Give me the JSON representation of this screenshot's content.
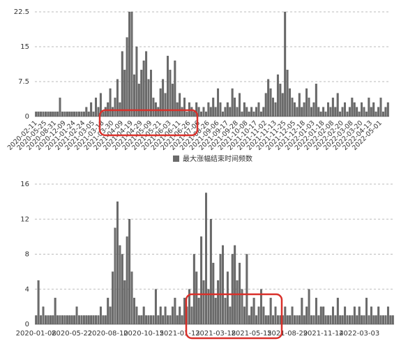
{
  "chart_data": [
    {
      "type": "bar",
      "categories": [
        "2020-02-11",
        null,
        null,
        null,
        "2020-05-25",
        null,
        null,
        null,
        "2020-08-31",
        null,
        null,
        null,
        "2020-12-09",
        null,
        null,
        null,
        "2021-01-24",
        null,
        null,
        null,
        "2021-02-24",
        null,
        null,
        null,
        "2021-03-05",
        null,
        null,
        null,
        "2021-03-18",
        null,
        null,
        null,
        "2021-03-30",
        null,
        null,
        null,
        "2021-04-09",
        null,
        null,
        null,
        "2021-04-19",
        null,
        null,
        null,
        "2021-04-29",
        null,
        null,
        null,
        "2021-05-09",
        null,
        null,
        null,
        "2021-05-21",
        null,
        null,
        null,
        "2021-06-03",
        null,
        null,
        null,
        "2021-06-11",
        null,
        null,
        null,
        "2021-06-26",
        null,
        null,
        null,
        "2021-07-06",
        null,
        null,
        null,
        "2021-08-26",
        null,
        null,
        null,
        "2021-09-06",
        null,
        null,
        null,
        "2021-09-17",
        null,
        null,
        null,
        "2021-09-28",
        null,
        null,
        null,
        "2021-10-08",
        null,
        null,
        null,
        "2021-10-17",
        null,
        null,
        null,
        "2021-11-02",
        null,
        null,
        null,
        "2021-11-13",
        null,
        null,
        null,
        "2021-11-25",
        null,
        null,
        null,
        "2021-12-05",
        null,
        null,
        null,
        "2021-12-18",
        null,
        null,
        null,
        "2022-01-03",
        null,
        null,
        null,
        "2022-01-18",
        null,
        null,
        null,
        "2022-02-08",
        null,
        null,
        null,
        "2022-02-20",
        null,
        null,
        null,
        "2022-03-08",
        null,
        null,
        null,
        "2022-03-20",
        null,
        null,
        null,
        "2022-04-13",
        null,
        null,
        null,
        "2022-05-01",
        null,
        null,
        null
      ],
      "series": [
        {
          "name": "最大涨幅结束时间频数",
          "color": "#6b6b6b",
          "values": [
            1,
            1,
            1,
            1,
            1,
            1,
            1,
            1,
            1,
            1,
            4,
            1,
            1,
            1,
            1,
            1,
            1,
            1,
            1,
            1,
            1,
            2,
            1,
            3,
            1,
            4,
            2,
            5,
            1,
            2,
            3,
            6,
            2,
            4,
            8,
            3,
            14,
            10,
            17,
            22.5,
            22.5,
            9,
            15,
            7,
            10,
            12,
            14,
            8,
            10,
            4,
            3,
            2,
            6,
            8,
            5,
            13,
            10,
            7,
            12,
            3,
            5,
            2,
            4,
            1,
            3,
            2,
            1,
            3,
            2,
            1,
            2,
            1,
            3,
            2,
            4,
            2,
            6,
            3,
            1,
            2,
            3,
            2,
            6,
            4,
            2,
            5,
            1,
            3,
            2,
            1,
            2,
            1,
            2,
            3,
            1,
            2,
            5,
            8,
            6,
            4,
            3,
            9,
            7,
            5,
            22.5,
            10,
            6,
            4,
            3,
            2,
            5,
            2,
            3,
            6,
            4,
            2,
            3,
            7,
            2,
            1,
            2,
            1,
            3,
            2,
            4,
            2,
            5,
            1,
            2,
            3,
            1,
            2,
            4,
            3,
            2,
            1,
            3,
            2,
            1,
            4,
            2,
            3,
            1,
            2,
            4,
            1,
            2,
            3
          ]
        }
      ],
      "ylim": [
        0,
        22.5
      ],
      "yticks": [
        0,
        7.5,
        15,
        22.5
      ],
      "grid": true,
      "legend": "bottom"
    },
    {
      "type": "bar",
      "categories": [
        "2020-01-08",
        null,
        null,
        null,
        null,
        null,
        null,
        null,
        null,
        null,
        null,
        null,
        null,
        null,
        null,
        "2020-05-22",
        null,
        null,
        null,
        null,
        null,
        null,
        null,
        null,
        null,
        null,
        null,
        null,
        null,
        null,
        "2020-08-10",
        null,
        null,
        null,
        null,
        null,
        null,
        null,
        null,
        null,
        null,
        null,
        null,
        null,
        null,
        "2020-10-15",
        null,
        null,
        null,
        null,
        null,
        null,
        null,
        null,
        null,
        null,
        null,
        null,
        null,
        null,
        "2021-01-13",
        null,
        null,
        null,
        null,
        null,
        null,
        null,
        null,
        null,
        null,
        null,
        null,
        null,
        null,
        "2021-03-18",
        null,
        null,
        null,
        null,
        null,
        null,
        null,
        null,
        null,
        null,
        null,
        null,
        null,
        null,
        "2021-05-15",
        null,
        null,
        null,
        null,
        null,
        null,
        null,
        null,
        null,
        null,
        null,
        null,
        null,
        null,
        "2021-08-29",
        null,
        null,
        null,
        null,
        null,
        null,
        null,
        null,
        null,
        null,
        null,
        null,
        null,
        null,
        "2021-11-14",
        null,
        null,
        null,
        null,
        null,
        null,
        null,
        null,
        null,
        null,
        null,
        null,
        null,
        null,
        "2022-03-03",
        null,
        null,
        null,
        null,
        null,
        null,
        null,
        null,
        null,
        null,
        null,
        null,
        null,
        null
      ],
      "values": [
        1,
        5,
        1,
        2,
        1,
        1,
        1,
        1,
        3,
        1,
        1,
        1,
        1,
        1,
        1,
        1,
        1,
        2,
        1,
        1,
        1,
        1,
        1,
        1,
        1,
        1,
        1,
        2,
        1,
        1,
        3,
        2,
        6,
        11,
        14,
        9,
        8,
        5,
        10,
        12,
        6,
        3,
        2,
        1,
        1,
        2,
        1,
        1,
        1,
        1,
        4,
        1,
        2,
        1,
        2,
        1,
        1,
        2,
        3,
        1,
        2,
        1,
        3,
        2,
        4,
        2,
        8,
        6,
        3,
        10,
        5,
        15,
        4,
        12,
        7,
        3,
        5,
        8,
        9,
        3,
        6,
        2,
        8,
        9,
        5,
        7,
        4,
        2,
        8,
        1,
        2,
        3,
        1,
        2,
        4,
        2,
        1,
        1,
        3,
        1,
        2,
        1,
        1,
        1,
        2,
        1,
        1,
        2,
        1,
        1,
        1,
        3,
        1,
        2,
        4,
        1,
        1,
        3,
        1,
        2,
        2,
        1,
        1,
        1,
        2,
        1,
        3,
        1,
        1,
        2,
        1,
        1,
        1,
        2,
        1,
        2,
        1,
        1,
        3,
        1,
        2,
        1,
        1,
        2,
        1,
        1,
        1,
        2,
        1,
        1
      ],
      "color": "#6b6b6b",
      "ylim": [
        0,
        16
      ],
      "yticks": [
        0,
        4,
        8,
        12,
        16
      ],
      "grid": true
    }
  ]
}
